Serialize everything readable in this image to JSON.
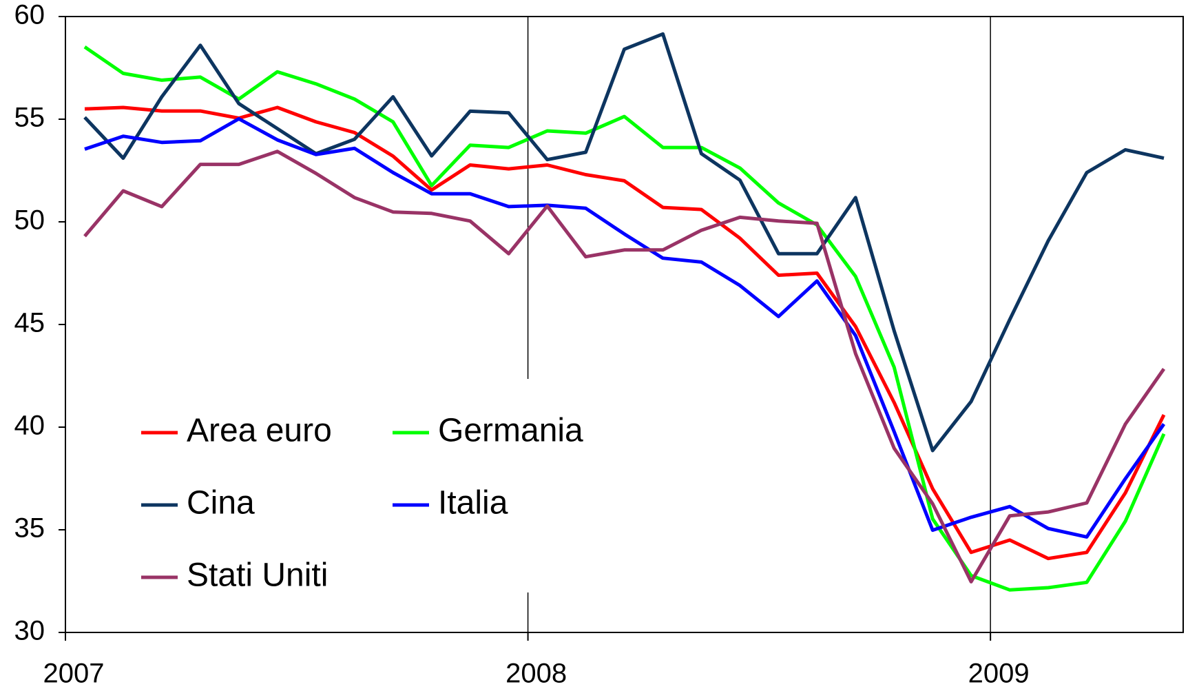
{
  "chart_data": {
    "type": "line",
    "x": [
      2007.0417,
      2007.125,
      2007.2083,
      2007.2917,
      2007.375,
      2007.4583,
      2007.5417,
      2007.625,
      2007.7083,
      2007.7917,
      2007.875,
      2007.9583,
      2008.0417,
      2008.125,
      2008.2083,
      2008.2917,
      2008.375,
      2008.4583,
      2008.5417,
      2008.625,
      2008.7083,
      2008.7917,
      2008.875,
      2008.9583,
      2009.0417,
      2009.125,
      2009.2083,
      2009.2917,
      2009.375
    ],
    "xlim": [
      2007,
      2009.4167
    ],
    "xticks": [
      2007,
      2008,
      2009
    ],
    "ylim": [
      30,
      60
    ],
    "yticks": [
      30,
      35,
      40,
      45,
      50,
      55,
      60
    ],
    "legend": "lower-left",
    "series": [
      {
        "name": "Area euro",
        "color": "#ff0000",
        "values": [
          55.5,
          55.57,
          55.4,
          55.4,
          55.05,
          55.57,
          54.87,
          54.35,
          53.2,
          51.55,
          52.77,
          52.58,
          52.77,
          52.3,
          52.0,
          50.7,
          50.6,
          49.2,
          47.4,
          47.5,
          44.9,
          41.2,
          37.0,
          33.9,
          34.5,
          33.6,
          33.9,
          36.8,
          40.6
        ]
      },
      {
        "name": "Germania",
        "color": "#00ff00",
        "values": [
          58.52,
          57.23,
          56.9,
          57.05,
          55.98,
          57.31,
          56.72,
          55.98,
          54.87,
          51.77,
          53.73,
          53.62,
          54.43,
          54.32,
          55.13,
          53.62,
          53.62,
          52.62,
          50.92,
          49.85,
          47.34,
          42.92,
          35.53,
          32.77,
          32.07,
          32.18,
          32.44,
          35.42,
          39.67
        ]
      },
      {
        "name": "Cina",
        "color": "#0d3560",
        "values": [
          55.09,
          53.1,
          56.09,
          58.6,
          55.76,
          54.54,
          53.32,
          54.02,
          56.09,
          53.21,
          55.39,
          55.31,
          53.03,
          53.39,
          58.41,
          59.15,
          53.32,
          52.03,
          48.45,
          48.45,
          51.18,
          44.69,
          38.86,
          41.25,
          45.24,
          49.08,
          52.4,
          53.51,
          53.1
        ]
      },
      {
        "name": "Italia",
        "color": "#0000ff",
        "values": [
          53.54,
          54.17,
          53.87,
          53.95,
          55.02,
          53.99,
          53.28,
          53.58,
          52.4,
          51.37,
          51.37,
          50.74,
          50.81,
          50.66,
          49.41,
          48.23,
          48.04,
          46.9,
          45.39,
          47.12,
          44.46,
          39.78,
          34.98,
          35.61,
          36.13,
          35.06,
          34.65,
          37.49,
          40.15
        ]
      },
      {
        "name": "Stati Uniti",
        "color": "#993366",
        "values": [
          49.3,
          51.51,
          50.74,
          52.8,
          52.8,
          53.43,
          52.36,
          51.18,
          50.48,
          50.41,
          50.04,
          48.45,
          50.77,
          48.3,
          48.63,
          48.63,
          49.59,
          50.22,
          50.04,
          49.93,
          43.58,
          38.97,
          36.27,
          32.47,
          35.68,
          35.87,
          36.31,
          40.15,
          42.84
        ]
      }
    ]
  }
}
